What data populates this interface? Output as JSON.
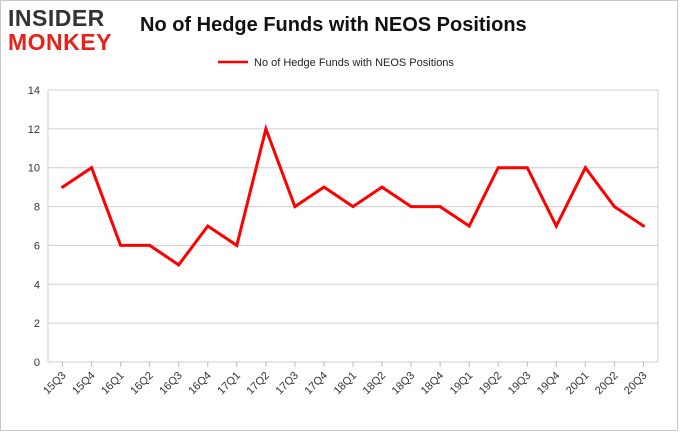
{
  "logo": {
    "line1": "INSIDER",
    "line2": "MONKEY"
  },
  "chart_data": {
    "type": "line",
    "title": "No of Hedge Funds with NEOS Positions",
    "xlabel": "",
    "ylabel": "",
    "categories": [
      "15Q3",
      "15Q4",
      "16Q1",
      "16Q2",
      "16Q3",
      "16Q4",
      "17Q1",
      "17Q2",
      "17Q3",
      "17Q4",
      "18Q1",
      "18Q2",
      "18Q3",
      "18Q4",
      "19Q1",
      "19Q2",
      "19Q3",
      "19Q4",
      "20Q1",
      "20Q2",
      "20Q3"
    ],
    "series": [
      {
        "name": "No of Hedge Funds with NEOS Positions",
        "values": [
          9,
          10,
          6,
          6,
          5,
          7,
          6,
          12,
          8,
          9,
          8,
          9,
          8,
          8,
          7,
          10,
          10,
          7,
          10,
          8,
          7
        ],
        "color": "#ff0000"
      }
    ],
    "ylim": [
      0,
      14
    ],
    "yticks": [
      0,
      2,
      4,
      6,
      8,
      10,
      12,
      14
    ],
    "grid": true,
    "legend": "top-center"
  }
}
